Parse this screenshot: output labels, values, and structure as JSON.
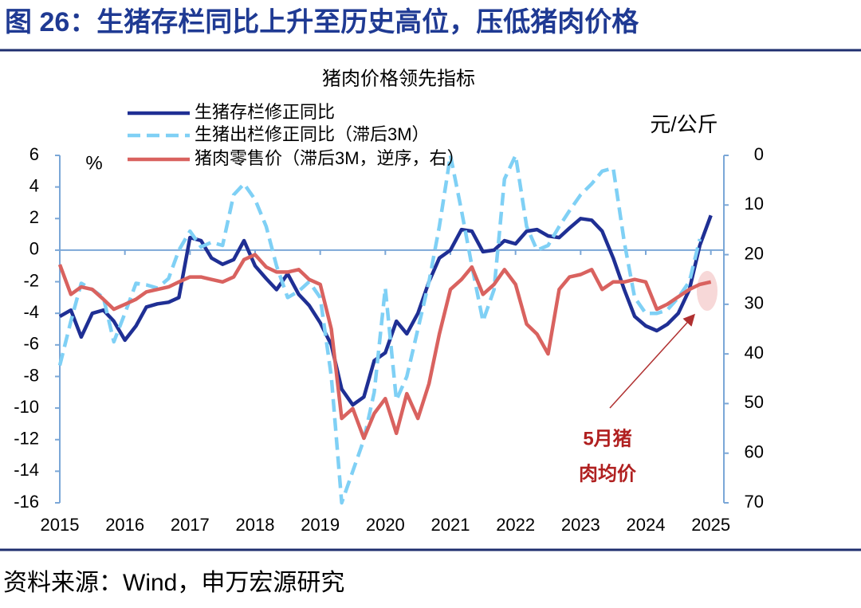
{
  "header": {
    "title": "图 26：生猪存栏同比上升至历史高位，压低猪肉价格"
  },
  "chart_data": {
    "type": "line",
    "title": "猪肉价格领先指标",
    "y_label": "%",
    "y2_label": "元/公斤",
    "annotations": [
      "5月猪",
      "肉均价"
    ],
    "x": [
      2015,
      2015.17,
      2015.33,
      2015.5,
      2015.67,
      2015.83,
      2016,
      2016.17,
      2016.33,
      2016.5,
      2016.67,
      2016.83,
      2017,
      2017.17,
      2017.33,
      2017.5,
      2017.67,
      2017.83,
      2018,
      2018.17,
      2018.33,
      2018.5,
      2018.67,
      2018.83,
      2019,
      2019.17,
      2019.33,
      2019.5,
      2019.67,
      2019.83,
      2020,
      2020.17,
      2020.33,
      2020.5,
      2020.67,
      2020.83,
      2021,
      2021.17,
      2021.33,
      2021.5,
      2021.67,
      2021.83,
      2022,
      2022.17,
      2022.33,
      2022.5,
      2022.67,
      2022.83,
      2023,
      2023.17,
      2023.33,
      2023.5,
      2023.67,
      2023.83,
      2024,
      2024.17,
      2024.33,
      2024.5,
      2024.67,
      2024.83,
      2025
    ],
    "xlim": [
      2015,
      2025.2
    ],
    "xticks": [
      2015,
      2016,
      2017,
      2018,
      2019,
      2020,
      2021,
      2022,
      2023,
      2024,
      2025
    ],
    "ylim": [
      -16,
      6
    ],
    "yticks": [
      -16,
      -14,
      -12,
      -10,
      -8,
      -6,
      -4,
      -2,
      0,
      2,
      4,
      6
    ],
    "y2lim": [
      0,
      70
    ],
    "y2ticks": [
      0,
      10,
      20,
      30,
      40,
      50,
      60,
      70
    ],
    "y2_inverted": true,
    "series": [
      {
        "name": "生猪存栏修正同比",
        "color": "#1f2f94",
        "dash": false,
        "values": [
          -4.2,
          -3.8,
          -5.5,
          -4,
          -3.8,
          -4.5,
          -5.7,
          -4.8,
          -3.6,
          -3.4,
          -3.3,
          -3.0,
          0.8,
          0.6,
          -0.5,
          -0.9,
          -0.6,
          0.6,
          -1.0,
          -1.8,
          -2.5,
          -1.5,
          -2.8,
          -3.5,
          -4.6,
          -6.0,
          -8.8,
          -9.8,
          -9.3,
          -7,
          -6.5,
          -4.5,
          -5.3,
          -4,
          -2,
          -0.5,
          0,
          1.3,
          1.2,
          -0.1,
          0,
          0.6,
          0.4,
          1.2,
          1.3,
          0.9,
          0.8,
          1.4,
          2.0,
          1.9,
          1.2,
          -0.5,
          -2.5,
          -4.2,
          -4.8,
          -5.1,
          -4.7,
          -4.0,
          -2.5,
          0.3,
          2.2
        ]
      },
      {
        "name": "生猪出栏修正同比（滞后3M）",
        "color": "#7fd0f5",
        "dash": true,
        "values": [
          -7.3,
          -4.5,
          -2.1,
          -2.5,
          -3.0,
          -5.8,
          -4.0,
          -2.1,
          -2.2,
          -2.4,
          -1.8,
          0.0,
          1.2,
          0.2,
          0.5,
          0.3,
          3.5,
          4.2,
          3.2,
          1.5,
          -1.0,
          -3.0,
          -2.6,
          -2.0,
          -3.0,
          -8.0,
          -16,
          -14.0,
          -12.0,
          -9.0,
          -2.4,
          -9.5,
          -8.0,
          -5.0,
          -2.0,
          1.5,
          6,
          2.5,
          -1.0,
          -4.5,
          -2.5,
          4.5,
          6,
          1.5,
          0.0,
          0.3,
          1.5,
          2.5,
          3.5,
          4.2,
          5.0,
          5.2,
          0.5,
          -3.0,
          -4.0,
          -4.0,
          -3.8,
          -3.0,
          -2.0,
          0.7,
          null
        ]
      },
      {
        "name": "猪肉零售价（滞后3M，逆序，右）",
        "color": "#d9625f",
        "dash": false,
        "axis": "y2",
        "values": [
          22,
          28,
          26.5,
          27,
          29,
          31,
          30,
          29,
          27.5,
          27,
          26.5,
          25.5,
          24.5,
          24.5,
          25,
          25.5,
          24.5,
          21,
          20,
          22.5,
          23.5,
          23.5,
          23,
          25,
          26,
          35,
          53,
          51,
          57,
          52,
          49,
          56,
          48,
          53,
          46,
          36,
          27,
          25,
          22.5,
          28,
          26,
          23,
          26,
          34,
          36,
          40,
          27,
          24.5,
          24,
          23,
          27,
          25.5,
          25.5,
          25,
          25.5,
          31,
          30,
          28.5,
          27,
          26,
          25.5
        ]
      }
    ]
  },
  "footer": {
    "source": "资料来源：Wind，申万宏源研究"
  }
}
